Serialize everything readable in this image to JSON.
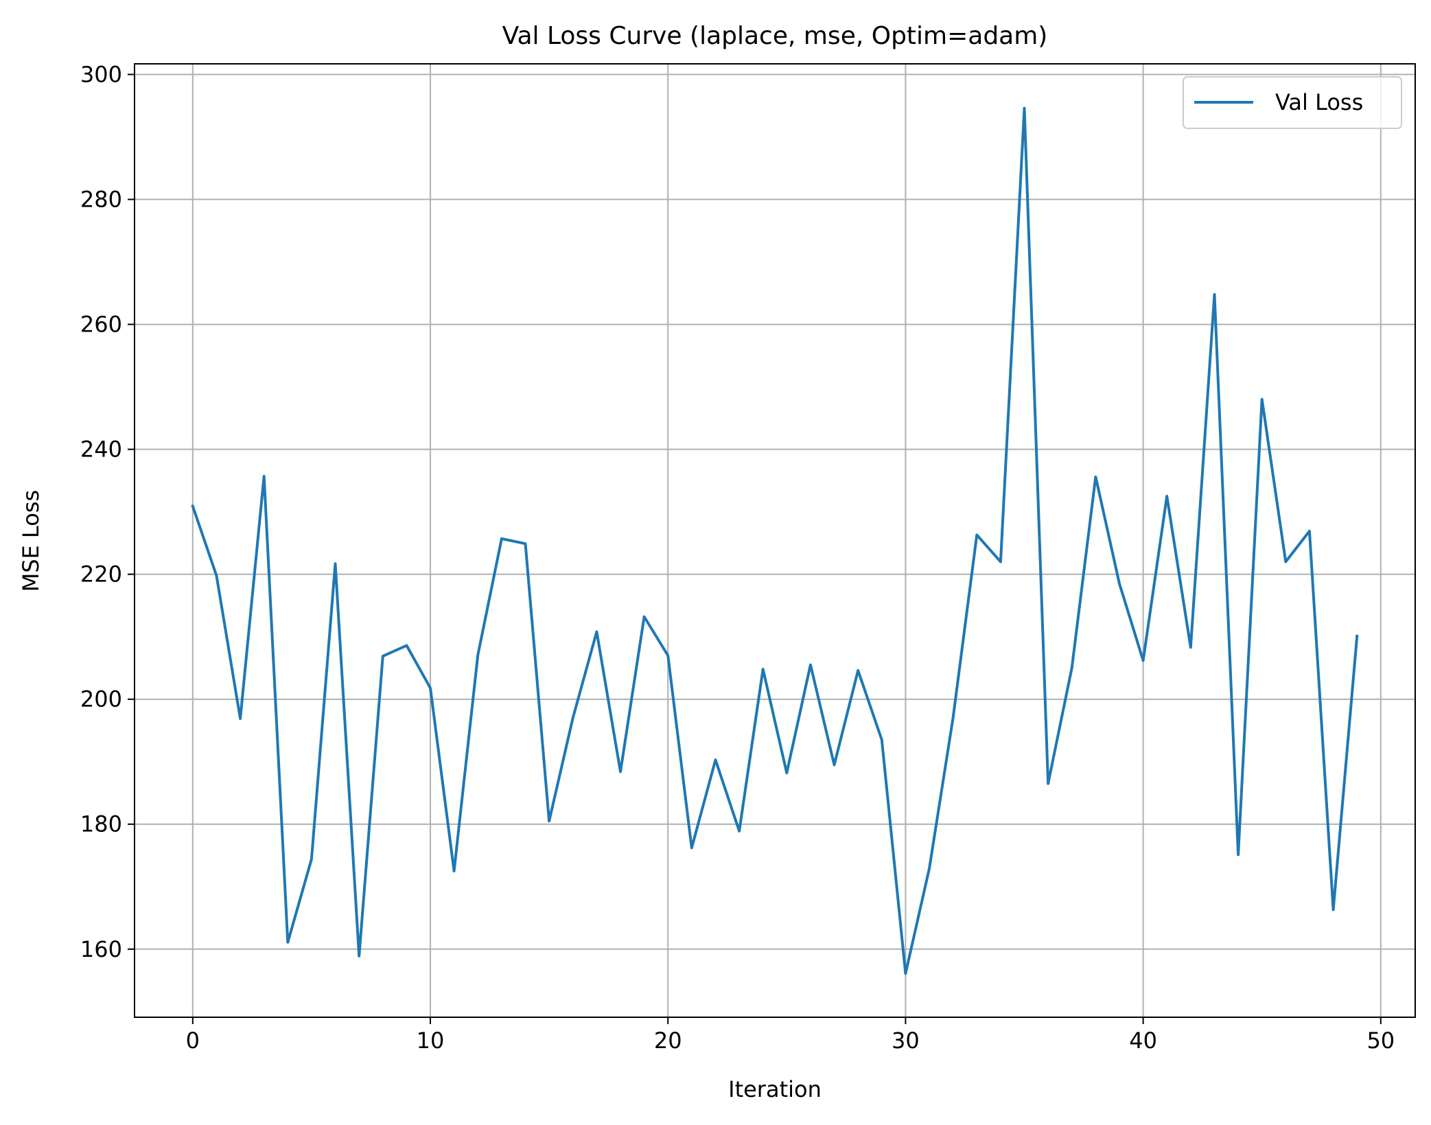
{
  "chart_data": {
    "type": "line",
    "title": "Val Loss Curve (laplace, mse, Optim=adam)",
    "xlabel": "Iteration",
    "ylabel": "MSE Loss",
    "xlim": [
      -2.45,
      51.45
    ],
    "ylim": [
      149.1,
      301.7
    ],
    "xticks": [
      0,
      10,
      20,
      30,
      40,
      50
    ],
    "yticks": [
      160,
      180,
      200,
      220,
      240,
      260,
      280,
      300
    ],
    "grid": true,
    "legend_position": "top-right",
    "series": [
      {
        "name": "Val Loss",
        "color": "#1f77b4",
        "x": [
          0,
          1,
          2,
          3,
          4,
          5,
          6,
          7,
          8,
          9,
          10,
          11,
          12,
          13,
          14,
          15,
          16,
          17,
          18,
          19,
          20,
          21,
          22,
          23,
          24,
          25,
          26,
          27,
          28,
          29,
          30,
          31,
          32,
          33,
          34,
          35,
          36,
          37,
          38,
          39,
          40,
          41,
          42,
          43,
          44,
          45,
          46,
          47,
          48,
          49
        ],
        "values": [
          230.9,
          219.8,
          196.9,
          235.7,
          161.1,
          174.4,
          221.7,
          158.9,
          206.9,
          208.6,
          201.8,
          172.5,
          207.1,
          225.7,
          224.9,
          180.5,
          197.0,
          210.8,
          188.4,
          213.2,
          207.0,
          176.2,
          190.3,
          178.9,
          204.8,
          188.2,
          205.5,
          189.5,
          204.6,
          193.5,
          156.1,
          172.9,
          197.0,
          226.3,
          222.0,
          294.6,
          186.5,
          205.0,
          235.6,
          218.5,
          206.2,
          232.5,
          208.3,
          264.8,
          175.1,
          248.0,
          222.0,
          226.9,
          166.3,
          210.1
        ]
      }
    ]
  }
}
